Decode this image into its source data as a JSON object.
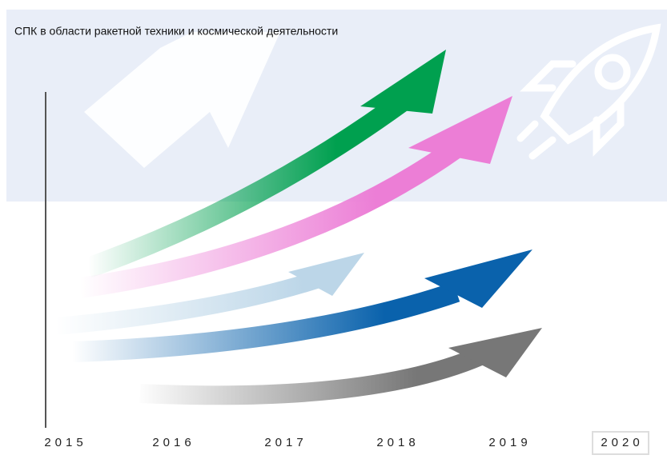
{
  "title": "СПК в области ракетной техники и космической деятельности",
  "years": [
    "2015",
    "2016",
    "2017",
    "2018",
    "2019",
    "2020"
  ]
}
